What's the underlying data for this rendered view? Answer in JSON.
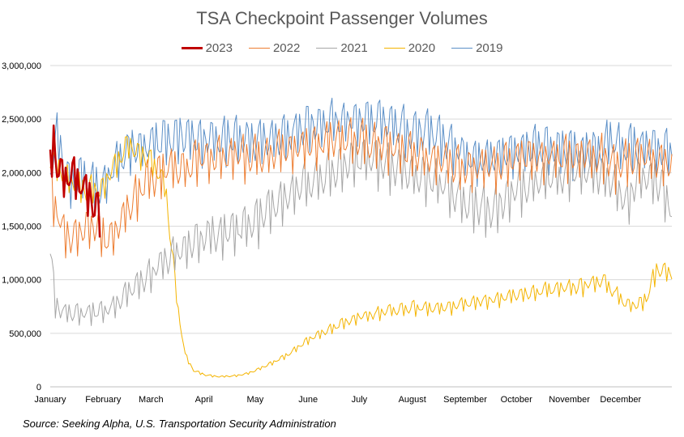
{
  "chart_data": {
    "type": "line",
    "title": "TSA Checkpoint Passenger Volumes",
    "source": "Source: Seeking Alpha, U.S. Transportation Security Administration",
    "xlabel": "",
    "ylabel": "",
    "ylim": [
      0,
      3000000
    ],
    "yticks": [
      {
        "value": 0,
        "label": "0"
      },
      {
        "value": 500000,
        "label": "500,000"
      },
      {
        "value": 1000000,
        "label": "1,000,000"
      },
      {
        "value": 1500000,
        "label": "1,500,000"
      },
      {
        "value": 2000000,
        "label": "2,000,000"
      },
      {
        "value": 2500000,
        "label": "2,500,000"
      },
      {
        "value": 3000000,
        "label": "3,000,000"
      }
    ],
    "x_unit": "day of year",
    "xlim": [
      1,
      365
    ],
    "months": [
      {
        "label": "January",
        "day": 1
      },
      {
        "label": "February",
        "day": 32
      },
      {
        "label": "March",
        "day": 60
      },
      {
        "label": "April",
        "day": 91
      },
      {
        "label": "May",
        "day": 121
      },
      {
        "label": "June",
        "day": 152
      },
      {
        "label": "July",
        "day": 182
      },
      {
        "label": "August",
        "day": 213
      },
      {
        "label": "September",
        "day": 244
      },
      {
        "label": "October",
        "day": 274
      },
      {
        "label": "November",
        "day": 305
      },
      {
        "label": "December",
        "day": 335
      }
    ],
    "grid": true,
    "legend_position": "top-center",
    "series": [
      {
        "name": "2019",
        "color": "#5B8FC7",
        "width": 1.0,
        "points": [
          [
            1,
            2000000
          ],
          [
            5,
            2350000
          ],
          [
            12,
            1900000
          ],
          [
            20,
            1950000
          ],
          [
            31,
            1850000
          ],
          [
            38,
            2050000
          ],
          [
            46,
            2200000
          ],
          [
            56,
            2250000
          ],
          [
            66,
            2300000
          ],
          [
            78,
            2350000
          ],
          [
            92,
            2300000
          ],
          [
            108,
            2320000
          ],
          [
            121,
            2280000
          ],
          [
            135,
            2350000
          ],
          [
            152,
            2450000
          ],
          [
            167,
            2480000
          ],
          [
            182,
            2500000
          ],
          [
            200,
            2450000
          ],
          [
            213,
            2400000
          ],
          [
            228,
            2350000
          ],
          [
            244,
            2150000
          ],
          [
            260,
            2150000
          ],
          [
            274,
            2230000
          ],
          [
            290,
            2250000
          ],
          [
            305,
            2200000
          ],
          [
            320,
            2200000
          ],
          [
            330,
            2300000
          ],
          [
            335,
            2250000
          ],
          [
            350,
            2250000
          ],
          [
            365,
            2200000
          ]
        ],
        "weekly_swing": 230000
      },
      {
        "name": "2020",
        "color": "#F4B400",
        "width": 1.0,
        "points": [
          [
            1,
            2150000
          ],
          [
            10,
            1950000
          ],
          [
            20,
            1850000
          ],
          [
            31,
            1850000
          ],
          [
            38,
            2050000
          ],
          [
            46,
            2250000
          ],
          [
            52,
            2200000
          ],
          [
            62,
            2050000
          ],
          [
            68,
            1900000
          ],
          [
            70,
            1600000
          ],
          [
            73,
            1150000
          ],
          [
            76,
            700000
          ],
          [
            80,
            300000
          ],
          [
            85,
            150000
          ],
          [
            92,
            110000
          ],
          [
            100,
            95000
          ],
          [
            108,
            100000
          ],
          [
            115,
            120000
          ],
          [
            121,
            150000
          ],
          [
            130,
            220000
          ],
          [
            140,
            300000
          ],
          [
            152,
            440000
          ],
          [
            160,
            500000
          ],
          [
            170,
            580000
          ],
          [
            182,
            650000
          ],
          [
            195,
            700000
          ],
          [
            213,
            740000
          ],
          [
            230,
            730000
          ],
          [
            244,
            780000
          ],
          [
            260,
            820000
          ],
          [
            274,
            850000
          ],
          [
            290,
            900000
          ],
          [
            305,
            920000
          ],
          [
            315,
            950000
          ],
          [
            325,
            1000000
          ],
          [
            335,
            820000
          ],
          [
            342,
            750000
          ],
          [
            350,
            820000
          ],
          [
            356,
            1100000
          ],
          [
            365,
            1050000
          ]
        ],
        "weekly_swing": 140000
      },
      {
        "name": "2021",
        "color": "#A6A6A6",
        "width": 1.0,
        "points": [
          [
            1,
            1300000
          ],
          [
            4,
            750000
          ],
          [
            10,
            700000
          ],
          [
            20,
            700000
          ],
          [
            31,
            700000
          ],
          [
            38,
            750000
          ],
          [
            46,
            900000
          ],
          [
            52,
            950000
          ],
          [
            60,
            1050000
          ],
          [
            70,
            1200000
          ],
          [
            80,
            1300000
          ],
          [
            91,
            1400000
          ],
          [
            105,
            1450000
          ],
          [
            121,
            1550000
          ],
          [
            135,
            1700000
          ],
          [
            152,
            1900000
          ],
          [
            165,
            2000000
          ],
          [
            182,
            2150000
          ],
          [
            195,
            2100000
          ],
          [
            213,
            2000000
          ],
          [
            228,
            1900000
          ],
          [
            244,
            1750000
          ],
          [
            258,
            1650000
          ],
          [
            274,
            1850000
          ],
          [
            290,
            1950000
          ],
          [
            305,
            2000000
          ],
          [
            315,
            2000000
          ],
          [
            330,
            1950000
          ],
          [
            338,
            1700000
          ],
          [
            345,
            1950000
          ],
          [
            355,
            1950000
          ],
          [
            365,
            1700000
          ]
        ],
        "weekly_swing": 230000
      },
      {
        "name": "2022",
        "color": "#ED7D31",
        "width": 1.0,
        "points": [
          [
            1,
            1900000
          ],
          [
            4,
            1700000
          ],
          [
            10,
            1400000
          ],
          [
            20,
            1450000
          ],
          [
            28,
            1500000
          ],
          [
            35,
            1350000
          ],
          [
            46,
            1650000
          ],
          [
            55,
            1900000
          ],
          [
            62,
            1950000
          ],
          [
            70,
            2050000
          ],
          [
            80,
            2050000
          ],
          [
            91,
            2150000
          ],
          [
            105,
            2150000
          ],
          [
            121,
            2150000
          ],
          [
            135,
            2200000
          ],
          [
            152,
            2250000
          ],
          [
            165,
            2300000
          ],
          [
            182,
            2300000
          ],
          [
            195,
            2250000
          ],
          [
            213,
            2200000
          ],
          [
            228,
            2100000
          ],
          [
            244,
            2050000
          ],
          [
            260,
            2050000
          ],
          [
            274,
            2150000
          ],
          [
            290,
            2150000
          ],
          [
            305,
            2150000
          ],
          [
            318,
            2150000
          ],
          [
            325,
            2150000
          ],
          [
            332,
            2050000
          ],
          [
            340,
            2150000
          ],
          [
            350,
            2150000
          ],
          [
            365,
            2100000
          ]
        ],
        "weekly_swing": 220000
      },
      {
        "name": "2023",
        "color": "#C00000",
        "width": 2.5,
        "points": [
          [
            1,
            2100000
          ],
          [
            3,
            2300000
          ],
          [
            6,
            2000000
          ],
          [
            10,
            1900000
          ],
          [
            14,
            2000000
          ],
          [
            18,
            1900000
          ],
          [
            22,
            1800000
          ],
          [
            25,
            1750000
          ],
          [
            28,
            1650000
          ],
          [
            30,
            1580000
          ]
        ],
        "weekly_swing": 200000
      }
    ]
  }
}
